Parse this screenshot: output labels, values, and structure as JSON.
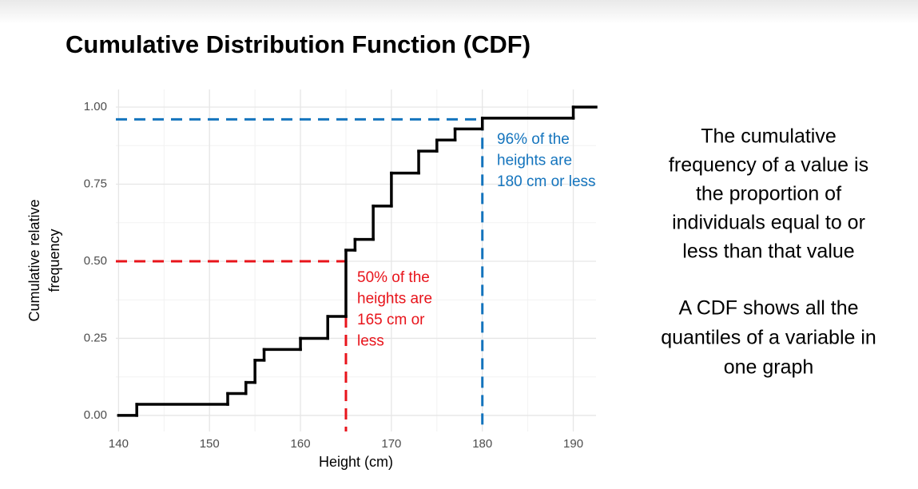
{
  "chart_data": {
    "type": "step",
    "title": "Cumulative Distribution Function (CDF)",
    "x_label": "Height (cm)",
    "y_label": [
      "Cumulative relative",
      "frequency"
    ],
    "x": [
      140,
      142,
      152,
      154,
      155,
      156,
      160,
      163,
      165,
      166,
      168,
      170,
      173,
      175,
      177,
      180,
      190
    ],
    "values": [
      0,
      0.036,
      0.071,
      0.107,
      0.179,
      0.214,
      0.25,
      0.321,
      0.536,
      0.571,
      0.679,
      0.786,
      0.857,
      0.893,
      0.929,
      0.964,
      1.0
    ],
    "color": "#000000",
    "xlim": [
      139.7,
      192.5
    ],
    "ylim": [
      -0.052,
      1.057
    ],
    "xticks": [
      140,
      150,
      160,
      170,
      180,
      190
    ],
    "yticks": [
      {
        "value": 0,
        "label": "0.00"
      },
      {
        "value": 0.25,
        "label": "0.25"
      },
      {
        "value": 0.5,
        "label": "0.50"
      },
      {
        "value": 0.75,
        "label": "0.75"
      },
      {
        "value": 1,
        "label": "1.00"
      }
    ],
    "xminor": [
      145,
      155,
      165,
      175,
      185
    ],
    "yminor": [
      0.125,
      0.375,
      0.625,
      0.875
    ],
    "grid": true,
    "reference_lines": [
      {
        "x": 165,
        "y": 0.5,
        "color": "#e8141b",
        "text": [
          "50% of the",
          "heights are",
          "165 cm or",
          "less"
        ]
      },
      {
        "x": 180,
        "y": 0.96,
        "color": "#1474bd",
        "text": [
          "96% of the",
          "heights are",
          "180 cm or less"
        ]
      }
    ]
  },
  "side_text": [
    [
      "The cumulative",
      "frequency of a value is",
      "the proportion of",
      "individuals equal to or",
      "less than that value"
    ],
    [
      "A CDF shows all the",
      "quantiles of a variable in",
      "one graph"
    ]
  ]
}
